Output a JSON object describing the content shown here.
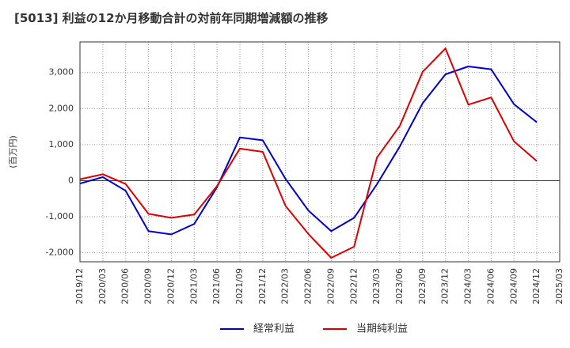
{
  "chart_data": {
    "type": "line",
    "title": "[5013]  利益の12か月移動合計の対前年同期増減額の推移",
    "ylabel": "(百万円)",
    "xlabel": "",
    "ylim": [
      -2250,
      3850
    ],
    "yticks": [
      -2000,
      -1000,
      0,
      1000,
      2000,
      3000
    ],
    "ytick_labels": [
      "-2,000",
      "-1,000",
      "0",
      "1,000",
      "2,000",
      "3,000"
    ],
    "x_range": [
      "2019/12",
      "2025/03"
    ],
    "categories": [
      "2019/12",
      "2020/03",
      "2020/06",
      "2020/09",
      "2020/12",
      "2021/03",
      "2021/06",
      "2021/09",
      "2021/12",
      "2022/03",
      "2022/06",
      "2022/09",
      "2022/12",
      "2023/03",
      "2023/06",
      "2023/09",
      "2023/12",
      "2024/03",
      "2024/06",
      "2024/09",
      "2024/12",
      "2025/03"
    ],
    "series": [
      {
        "name": "経常利益",
        "color": "#0000cc",
        "values": [
          -80,
          100,
          -280,
          -1400,
          -1490,
          -1200,
          -180,
          1200,
          1120,
          50,
          -830,
          -1400,
          -1030,
          -100,
          950,
          2150,
          2950,
          3170,
          3090,
          2120,
          1620,
          null
        ]
      },
      {
        "name": "当期純利益",
        "color": "#dd0000",
        "values": [
          40,
          180,
          -90,
          -920,
          -1030,
          -940,
          -150,
          890,
          800,
          -700,
          -1480,
          -2140,
          -1830,
          640,
          1520,
          3020,
          3670,
          2110,
          2310,
          1090,
          540,
          null
        ]
      }
    ],
    "legend_position": "bottom-center",
    "grid": true
  }
}
